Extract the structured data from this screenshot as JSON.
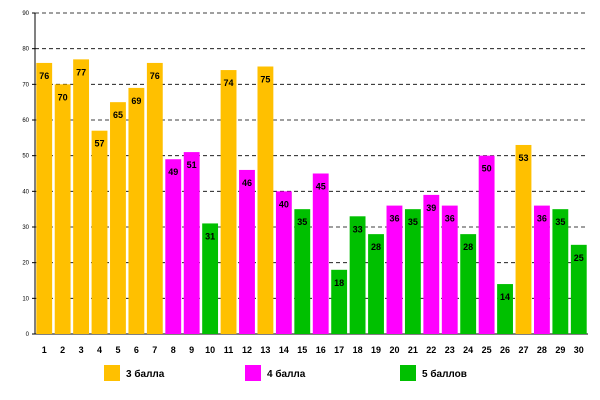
{
  "chart_data": {
    "type": "bar",
    "categories": [
      "1",
      "2",
      "3",
      "4",
      "5",
      "6",
      "7",
      "8",
      "9",
      "10",
      "11",
      "12",
      "13",
      "14",
      "15",
      "16",
      "17",
      "18",
      "19",
      "20",
      "21",
      "22",
      "23",
      "24",
      "25",
      "26",
      "27",
      "28",
      "29",
      "30"
    ],
    "values": [
      76,
      70,
      77,
      57,
      65,
      69,
      76,
      49,
      51,
      31,
      74,
      46,
      75,
      40,
      35,
      45,
      18,
      33,
      28,
      36,
      35,
      39,
      36,
      28,
      50,
      14,
      53,
      36,
      35,
      25
    ],
    "groups": [
      "3",
      "3",
      "3",
      "3",
      "3",
      "3",
      "3",
      "4",
      "4",
      "5",
      "3",
      "4",
      "3",
      "4",
      "5",
      "4",
      "5",
      "5",
      "5",
      "4",
      "5",
      "4",
      "4",
      "5",
      "4",
      "5",
      "3",
      "4",
      "5",
      "5"
    ],
    "legend": [
      {
        "key": "3",
        "label": "3 балла",
        "color": "#FFC000"
      },
      {
        "key": "4",
        "label": "4 балла",
        "color": "#FF00FF"
      },
      {
        "key": "5",
        "label": "5 баллов",
        "color": "#00C000"
      }
    ],
    "yticks": [
      0,
      10,
      20,
      30,
      40,
      50,
      60,
      70,
      80,
      90
    ],
    "ylim": [
      0,
      90
    ],
    "grid": true,
    "legend_position": "bottom",
    "title": "",
    "xlabel": "",
    "ylabel": ""
  }
}
